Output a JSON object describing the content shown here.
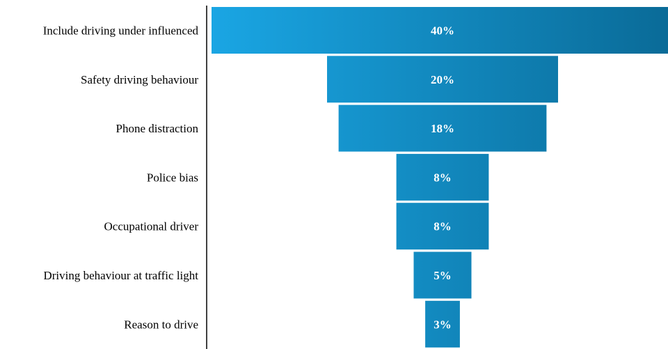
{
  "chart_data": {
    "type": "bar",
    "subtype": "funnel",
    "title": "",
    "xlabel": "",
    "ylabel": "",
    "categories": [
      "Include driving under influenced",
      "Safety driving behaviour",
      "Phone distraction",
      "Police bias",
      "Occupational driver",
      "Driving behaviour at traffic light",
      "Reason to drive"
    ],
    "values": [
      40,
      20,
      18,
      8,
      8,
      5,
      3
    ],
    "value_labels": [
      "40%",
      "20%",
      "18%",
      "8%",
      "8%",
      "5%",
      "3%"
    ],
    "unit": "%",
    "grid": false,
    "legend": "none",
    "colors": {
      "bar_light": "#1aa6e4",
      "bar_dark": "#0a6b98",
      "axis": "#000000",
      "value_text": "#ffffff"
    }
  }
}
